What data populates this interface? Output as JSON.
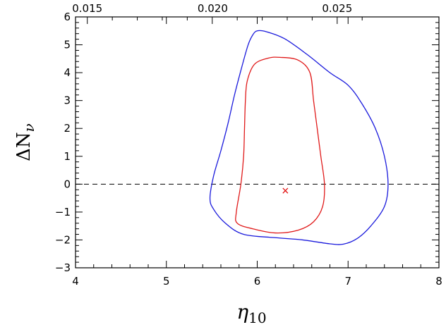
{
  "chart_data": {
    "type": "line",
    "title": "",
    "xlabel": "η",
    "xlabel_subscript": "10",
    "ylabel": "ΔN",
    "ylabel_subscript": "ν",
    "xlim": [
      4,
      8
    ],
    "ylim": [
      -3,
      6
    ],
    "x_ticks": [
      "4",
      "5",
      "6",
      "7",
      "8"
    ],
    "y_ticks": [
      "−3",
      "−2",
      "−1",
      "0",
      "1",
      "2",
      "3",
      "4",
      "5",
      "6"
    ],
    "top_axis_ticks": [
      {
        "label": "0.015",
        "x_at": 4.13
      },
      {
        "label": "0.020",
        "x_at": 5.51
      },
      {
        "label": "0.025",
        "x_at": 6.88
      }
    ],
    "reference_line": {
      "y": 0,
      "style": "dashed",
      "color": "#000000"
    },
    "marker": {
      "x": 6.31,
      "y": -0.25,
      "symbol": "×",
      "color": "#e00000"
    },
    "series": [
      {
        "color": "#1a1adc",
        "closed": true,
        "points": [
          [
            6.0,
            5.5
          ],
          [
            6.1,
            5.47
          ],
          [
            6.3,
            5.22
          ],
          [
            6.55,
            4.65
          ],
          [
            6.8,
            4.0
          ],
          [
            7.0,
            3.55
          ],
          [
            7.15,
            2.9
          ],
          [
            7.3,
            2.0
          ],
          [
            7.4,
            1.0
          ],
          [
            7.44,
            0.0
          ],
          [
            7.4,
            -0.8
          ],
          [
            7.25,
            -1.5
          ],
          [
            7.1,
            -1.95
          ],
          [
            6.95,
            -2.15
          ],
          [
            6.8,
            -2.14
          ],
          [
            6.5,
            -2.0
          ],
          [
            6.2,
            -1.92
          ],
          [
            5.85,
            -1.8
          ],
          [
            5.65,
            -1.4
          ],
          [
            5.52,
            -0.9
          ],
          [
            5.48,
            -0.5
          ],
          [
            5.52,
            0.3
          ],
          [
            5.6,
            1.2
          ],
          [
            5.68,
            2.2
          ],
          [
            5.75,
            3.2
          ],
          [
            5.83,
            4.2
          ],
          [
            5.9,
            5.0
          ],
          [
            5.95,
            5.35
          ],
          [
            6.0,
            5.5
          ]
        ]
      },
      {
        "color": "#e01a1a",
        "closed": true,
        "points": [
          [
            6.12,
            4.52
          ],
          [
            6.25,
            4.55
          ],
          [
            6.45,
            4.45
          ],
          [
            6.58,
            4.0
          ],
          [
            6.62,
            3.0
          ],
          [
            6.66,
            2.0
          ],
          [
            6.7,
            1.0
          ],
          [
            6.74,
            0.0
          ],
          [
            6.72,
            -0.8
          ],
          [
            6.62,
            -1.35
          ],
          [
            6.45,
            -1.65
          ],
          [
            6.2,
            -1.75
          ],
          [
            5.95,
            -1.6
          ],
          [
            5.78,
            -1.4
          ],
          [
            5.77,
            -1.0
          ],
          [
            5.82,
            0.0
          ],
          [
            5.85,
            1.0
          ],
          [
            5.86,
            2.0
          ],
          [
            5.87,
            3.0
          ],
          [
            5.89,
            3.7
          ],
          [
            5.97,
            4.3
          ],
          [
            6.12,
            4.52
          ]
        ]
      }
    ]
  }
}
